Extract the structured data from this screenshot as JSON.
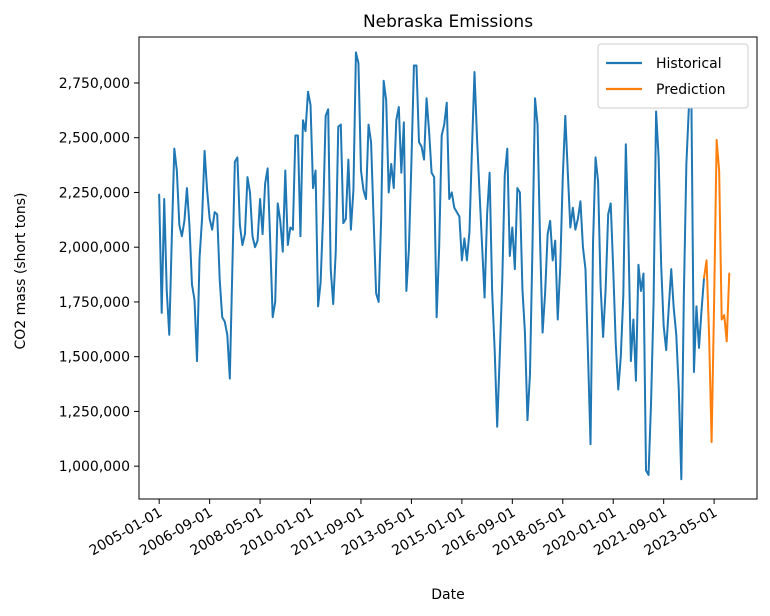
{
  "chart_data": {
    "type": "line",
    "title": "Nebraska Emissions",
    "xlabel": "Date",
    "ylabel": "CO2 mass (short tons)",
    "x_ticks": [
      "2005-01-01",
      "2006-09-01",
      "2008-05-01",
      "2010-01-01",
      "2011-09-01",
      "2013-05-01",
      "2015-01-01",
      "2016-09-01",
      "2018-05-01",
      "2020-01-01",
      "2021-09-01",
      "2023-05-01"
    ],
    "y_ticks": [
      1000000,
      1250000,
      1500000,
      1750000,
      2000000,
      2250000,
      2500000,
      2750000
    ],
    "y_tick_labels": [
      "1,000,000",
      "1,250,000",
      "1,500,000",
      "1,750,000",
      "2,000,000",
      "2,250,000",
      "2,500,000",
      "2,750,000"
    ],
    "xlim": [
      "2004-05-01",
      "2024-10-01"
    ],
    "ylim": [
      850000,
      2960000
    ],
    "legend_position": "top-right",
    "grid": false,
    "series": [
      {
        "name": "Historical",
        "color": "#1f77b4",
        "start": "2005-01-01",
        "values": [
          2240000,
          1700000,
          2220000,
          1800000,
          1600000,
          2040000,
          2450000,
          2350000,
          2100000,
          2050000,
          2120000,
          2270000,
          2100000,
          1830000,
          1760000,
          1480000,
          1950000,
          2130000,
          2440000,
          2260000,
          2130000,
          2080000,
          2160000,
          2150000,
          1850000,
          1680000,
          1660000,
          1600000,
          1400000,
          1900000,
          2390000,
          2410000,
          2100000,
          2010000,
          2060000,
          2320000,
          2250000,
          2050000,
          2000000,
          2030000,
          2220000,
          2060000,
          2290000,
          2360000,
          2030000,
          1680000,
          1750000,
          2200000,
          2120000,
          1980000,
          2350000,
          2010000,
          2090000,
          2080000,
          2510000,
          2510000,
          2050000,
          2580000,
          2530000,
          2710000,
          2650000,
          2270000,
          2350000,
          1730000,
          1840000,
          2150000,
          2600000,
          2630000,
          1900000,
          1740000,
          1980000,
          2550000,
          2560000,
          2110000,
          2130000,
          2400000,
          2080000,
          2260000,
          2890000,
          2840000,
          2350000,
          2260000,
          2220000,
          2560000,
          2480000,
          2130000,
          1790000,
          1750000,
          2130000,
          2760000,
          2670000,
          2250000,
          2380000,
          2270000,
          2580000,
          2640000,
          2340000,
          2570000,
          1800000,
          1990000,
          2390000,
          2830000,
          2830000,
          2480000,
          2460000,
          2400000,
          2680000,
          2530000,
          2340000,
          2320000,
          1680000,
          2000000,
          2510000,
          2560000,
          2660000,
          2220000,
          2250000,
          2180000,
          2160000,
          2140000,
          1940000,
          2040000,
          1940000,
          2070000,
          2450000,
          2800000,
          2500000,
          2250000,
          2010000,
          1770000,
          2150000,
          2340000,
          1800000,
          1530000,
          1180000,
          1500000,
          1840000,
          2330000,
          2450000,
          1960000,
          2090000,
          1900000,
          2270000,
          2250000,
          1810000,
          1610000,
          1210000,
          1420000,
          2010000,
          2680000,
          2560000,
          2030000,
          1610000,
          1790000,
          2060000,
          2120000,
          1940000,
          2030000,
          1670000,
          1910000,
          2320000,
          2600000,
          2340000,
          2090000,
          2180000,
          2080000,
          2130000,
          2210000,
          2000000,
          1900000,
          1510000,
          1100000,
          2020000,
          2410000,
          2300000,
          1820000,
          1590000,
          1810000,
          2150000,
          2200000,
          1900000,
          1560000,
          1350000,
          1500000,
          1780000,
          2470000,
          2060000,
          1480000,
          1670000,
          1390000,
          1920000,
          1800000,
          1880000,
          980000,
          960000,
          1290000,
          1750000,
          2620000,
          2410000,
          1920000,
          1640000,
          1530000,
          1720000,
          1900000,
          1720000,
          1600000,
          1350000,
          940000,
          1780000,
          2380000,
          2640000,
          2660000,
          1430000,
          1730000,
          1540000,
          1710000,
          1860000
        ]
      },
      {
        "name": "Prediction",
        "color": "#ff7f0e",
        "start": "2023-01-01",
        "values": [
          1860000,
          1940000,
          1600000,
          1110000,
          1750000,
          2490000,
          2350000,
          1670000,
          1690000,
          1570000,
          1880000
        ]
      }
    ]
  }
}
